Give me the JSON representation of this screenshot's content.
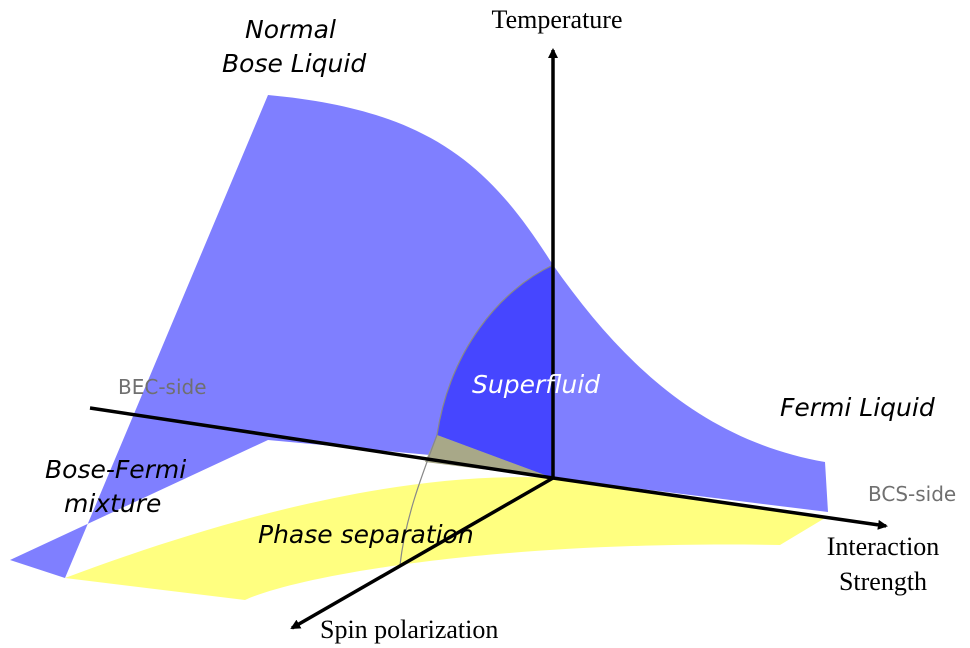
{
  "axes": {
    "temperature": "Temperature",
    "interaction_strength": [
      "Interaction",
      "Strength"
    ],
    "spin_polarization": "Spin polarization"
  },
  "sides": {
    "bec": "BEC-side",
    "bcs": "BCS-side"
  },
  "regions": {
    "normal_bose_liquid": [
      "Normal",
      "Bose Liquid"
    ],
    "superfluid": "Superfluid",
    "fermi_liquid": "Fermi Liquid",
    "bose_fermi_mixture": [
      "Bose-Fermi",
      "mixture"
    ],
    "phase_separation": "Phase separation"
  }
}
